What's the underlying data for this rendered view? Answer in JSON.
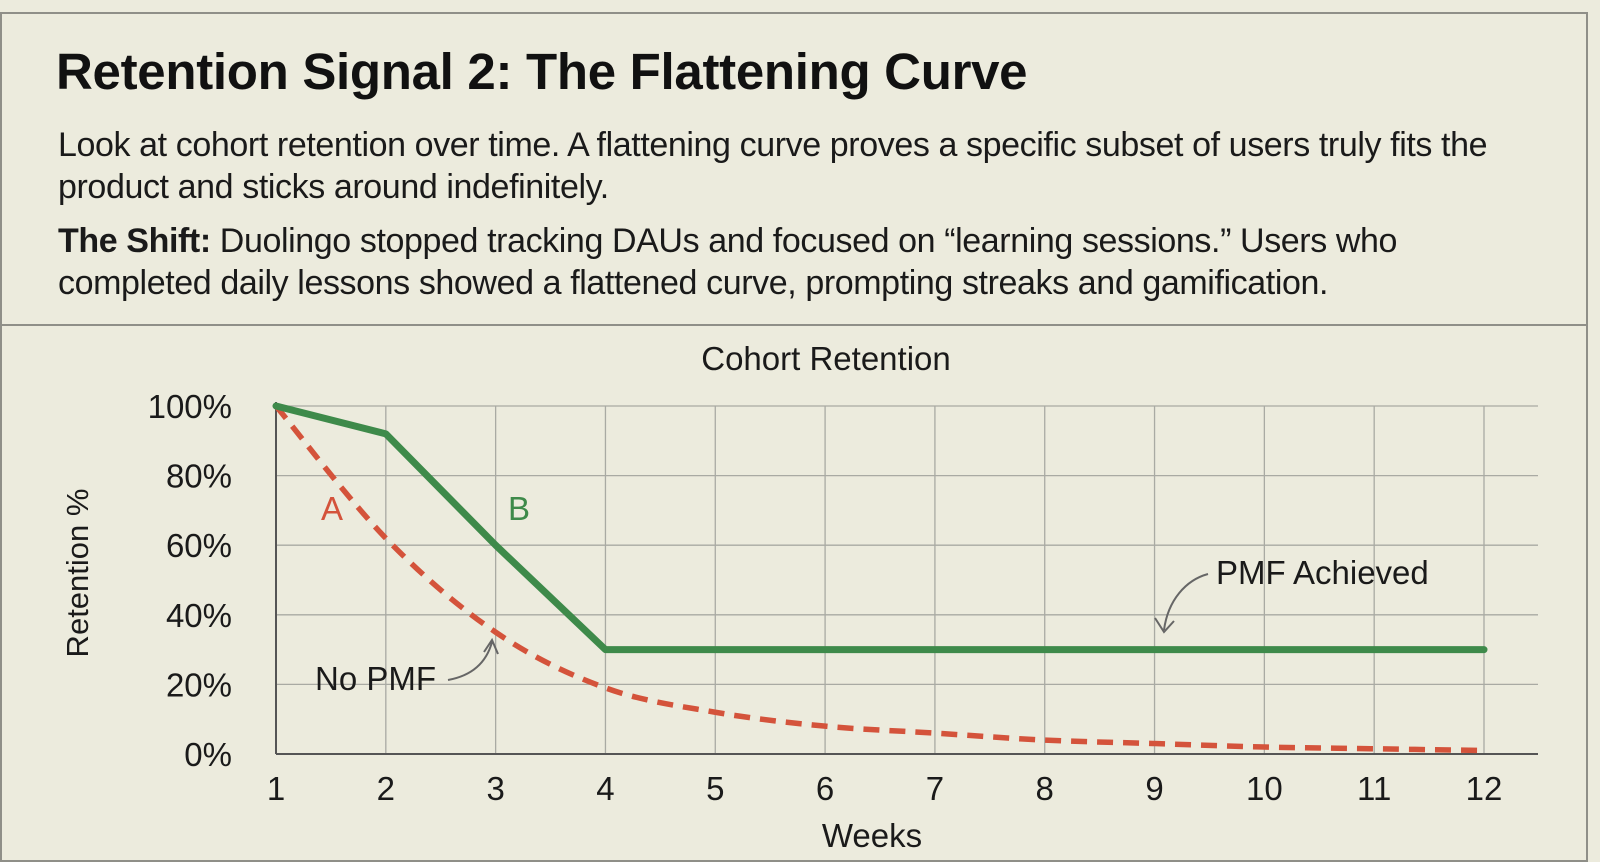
{
  "header": {
    "title": "Retention Signal 2: The Flattening Curve",
    "paragraph1": "Look at cohort retention over time. A flattening curve proves a specific subset of users truly fits the product and sticks around indefinitely.",
    "shift_label": "The Shift:",
    "shift_text": " Duolingo stopped tracking DAUs and focused on “learning sessions.” Users who completed daily lessons showed a flattened curve, prompting streaks and gamification."
  },
  "chart_data": {
    "type": "line",
    "title": "Cohort Retention",
    "xlabel": "Weeks",
    "ylabel": "Retention %",
    "x": [
      1,
      2,
      3,
      4,
      5,
      6,
      7,
      8,
      9,
      10,
      11,
      12
    ],
    "xlim": [
      1,
      12
    ],
    "ylim": [
      0,
      100
    ],
    "yticks": [
      0,
      20,
      40,
      60,
      80,
      100
    ],
    "ytick_labels": [
      "0%",
      "20%",
      "40%",
      "60%",
      "80%",
      "100%"
    ],
    "grid": true,
    "series": [
      {
        "name": "A",
        "color": "#d4533b",
        "style": "dashed",
        "values": [
          100,
          62,
          35,
          19,
          12,
          8,
          6,
          4,
          3,
          2,
          1.5,
          1
        ]
      },
      {
        "name": "B",
        "color": "#3e8a4a",
        "style": "solid",
        "values": [
          100,
          92,
          60,
          30,
          30,
          30,
          30,
          30,
          30,
          30,
          30,
          30
        ]
      }
    ],
    "annotations": [
      {
        "text": "PMF Achieved",
        "series": "B",
        "x": 9,
        "y": 30
      },
      {
        "text": "No PMF",
        "series": "A",
        "x": 3,
        "y": 30
      }
    ]
  }
}
